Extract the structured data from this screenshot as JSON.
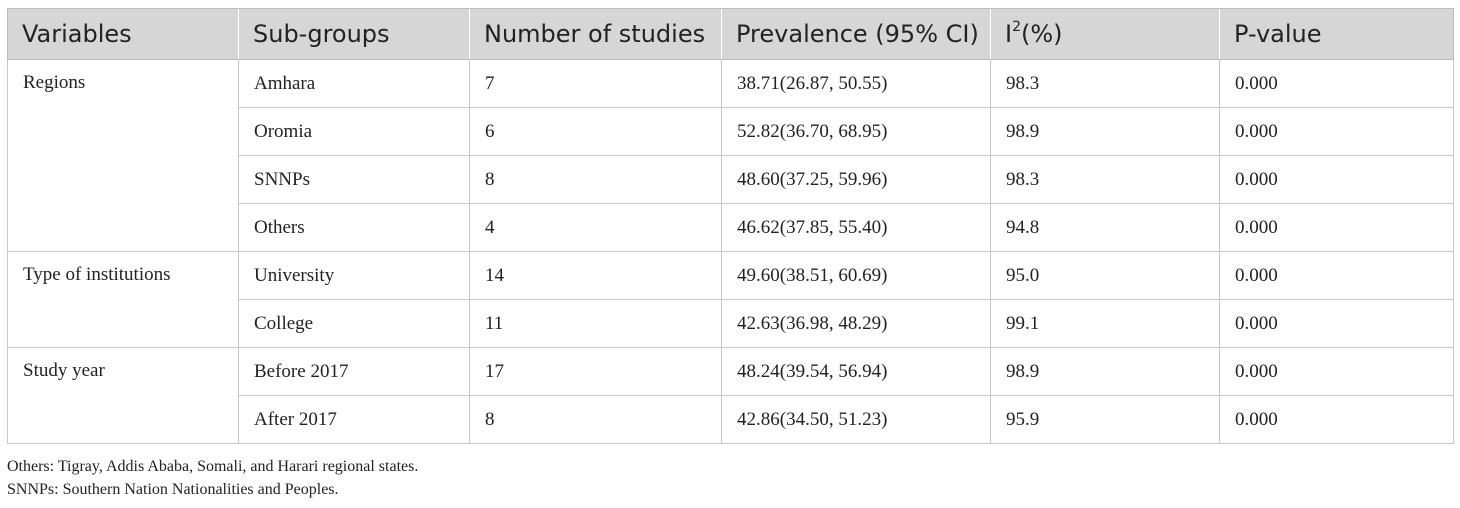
{
  "table": {
    "headers": {
      "variables": "Variables",
      "subgroups": "Sub-groups",
      "num_studies": "Number of studies",
      "prevalence": "Prevalence (95% CI)",
      "i2_base": "I",
      "i2_sup": "2",
      "i2_suffix": "(%)",
      "pvalue": "P-value"
    },
    "groups": [
      {
        "variable": "Regions",
        "rows": [
          {
            "subgroup": "Amhara",
            "n": "7",
            "prevalence": "38.71(26.87, 50.55)",
            "i2": "98.3",
            "p": "0.000"
          },
          {
            "subgroup": "Oromia",
            "n": "6",
            "prevalence": "52.82(36.70, 68.95)",
            "i2": "98.9",
            "p": "0.000"
          },
          {
            "subgroup": "SNNPs",
            "n": "8",
            "prevalence": "48.60(37.25, 59.96)",
            "i2": "98.3",
            "p": "0.000"
          },
          {
            "subgroup": "Others",
            "n": "4",
            "prevalence": "46.62(37.85, 55.40)",
            "i2": "94.8",
            "p": "0.000"
          }
        ]
      },
      {
        "variable": "Type of institutions",
        "rows": [
          {
            "subgroup": "University",
            "n": "14",
            "prevalence": "49.60(38.51, 60.69)",
            "i2": "95.0",
            "p": "0.000"
          },
          {
            "subgroup": "College",
            "n": "11",
            "prevalence": "42.63(36.98, 48.29)",
            "i2": "99.1",
            "p": "0.000"
          }
        ]
      },
      {
        "variable": "Study year",
        "rows": [
          {
            "subgroup": "Before 2017",
            "n": "17",
            "prevalence": "48.24(39.54, 56.94)",
            "i2": "98.9",
            "p": "0.000"
          },
          {
            "subgroup": "After 2017",
            "n": "8",
            "prevalence": "42.86(34.50, 51.23)",
            "i2": "95.9",
            "p": "0.000"
          }
        ]
      }
    ]
  },
  "notes": [
    "Others: Tigray, Addis Ababa, Somali, and Harari regional states.",
    "SNNPs: Southern Nation Nationalities and Peoples."
  ]
}
